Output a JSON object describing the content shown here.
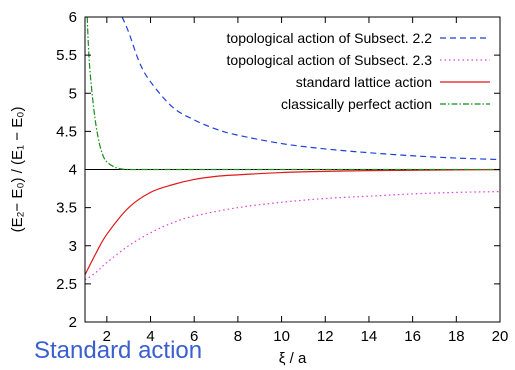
{
  "footer": {
    "title": "Standard action"
  },
  "chart_data": {
    "type": "line",
    "xlabel": "ξ / a",
    "ylabel": "(E₂− E₀) / (E₁ − E₀)",
    "xlim": [
      1,
      20
    ],
    "ylim": [
      2,
      6
    ],
    "xticks": [
      2,
      4,
      6,
      8,
      10,
      12,
      14,
      16,
      18,
      20
    ],
    "yticks": [
      2,
      2.5,
      3,
      3.5,
      4,
      4.5,
      5,
      5.5,
      6
    ],
    "legend_position": "top-right",
    "reference_line": {
      "y": 4,
      "color": "#000000"
    },
    "series": [
      {
        "name": "topological action of Subsect. 2.2",
        "color": "#1f3fdc",
        "dash": "6,4",
        "x": [
          2.7,
          3,
          3.5,
          4,
          5,
          6,
          7,
          8,
          10,
          12,
          14,
          16,
          18,
          20
        ],
        "y": [
          6.0,
          5.8,
          5.4,
          5.15,
          4.82,
          4.65,
          4.53,
          4.45,
          4.34,
          4.27,
          4.22,
          4.18,
          4.15,
          4.13
        ]
      },
      {
        "name": "topological action of Subsect. 2.3",
        "color": "#e03ce0",
        "dash": "1.5,3",
        "x": [
          1,
          1.5,
          2,
          3,
          4,
          5,
          6,
          8,
          10,
          12,
          14,
          16,
          18,
          20
        ],
        "y": [
          2.55,
          2.65,
          2.78,
          3.0,
          3.17,
          3.3,
          3.39,
          3.5,
          3.57,
          3.62,
          3.65,
          3.68,
          3.7,
          3.71
        ]
      },
      {
        "name": "standard lattice action",
        "color": "#e01818",
        "dash": "",
        "x": [
          1,
          1.5,
          2,
          3,
          4,
          5,
          6,
          7,
          8,
          10,
          12,
          14,
          16,
          18,
          20
        ],
        "y": [
          2.62,
          2.9,
          3.15,
          3.5,
          3.7,
          3.8,
          3.87,
          3.91,
          3.93,
          3.96,
          3.975,
          3.985,
          3.99,
          3.995,
          3.998
        ]
      },
      {
        "name": "classically perfect action",
        "color": "#189018",
        "dash": "6,2,1.5,2",
        "x": [
          1.1,
          1.2,
          1.4,
          1.6,
          1.8,
          2.0,
          2.3,
          2.6,
          3.0,
          4,
          6,
          10,
          20
        ],
        "y": [
          6.0,
          5.4,
          4.8,
          4.42,
          4.2,
          4.1,
          4.04,
          4.01,
          4.0,
          4.0,
          4.0,
          4.0,
          4.0
        ]
      }
    ]
  }
}
